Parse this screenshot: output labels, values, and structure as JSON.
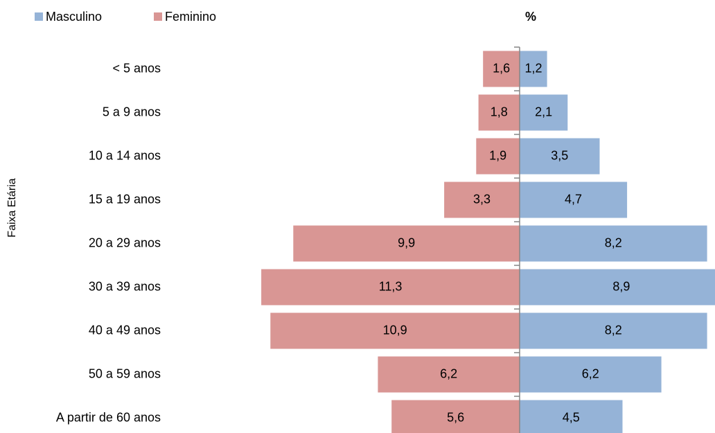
{
  "chart_data": {
    "type": "pyramid",
    "title": "%",
    "y_label": "Faixa Etária",
    "categories": [
      "< 5 anos",
      "5 a 9 anos",
      "10 a 14 anos",
      "15 a 19 anos",
      "20 a 29 anos",
      "30 a 39 anos",
      "40 a 49 anos",
      "50 a 59 anos",
      "A partir de 60 anos"
    ],
    "series": [
      {
        "name": "Masculino",
        "color": "#95b3d7",
        "values": [
          1.2,
          2.1,
          3.5,
          4.7,
          8.2,
          8.9,
          8.2,
          6.2,
          4.5
        ],
        "value_labels": [
          "1,2",
          "2,1",
          "3,5",
          "4,7",
          "8,2",
          "8,9",
          "8,2",
          "6,2",
          "4,5"
        ]
      },
      {
        "name": "Feminino",
        "color": "#d99694",
        "values": [
          1.6,
          1.8,
          1.9,
          3.3,
          9.9,
          11.3,
          10.9,
          6.2,
          5.6
        ],
        "value_labels": [
          "1,6",
          "1,8",
          "1,9",
          "3,3",
          "9,9",
          "11,3",
          "10,9",
          "6,2",
          "5,6"
        ]
      }
    ]
  }
}
